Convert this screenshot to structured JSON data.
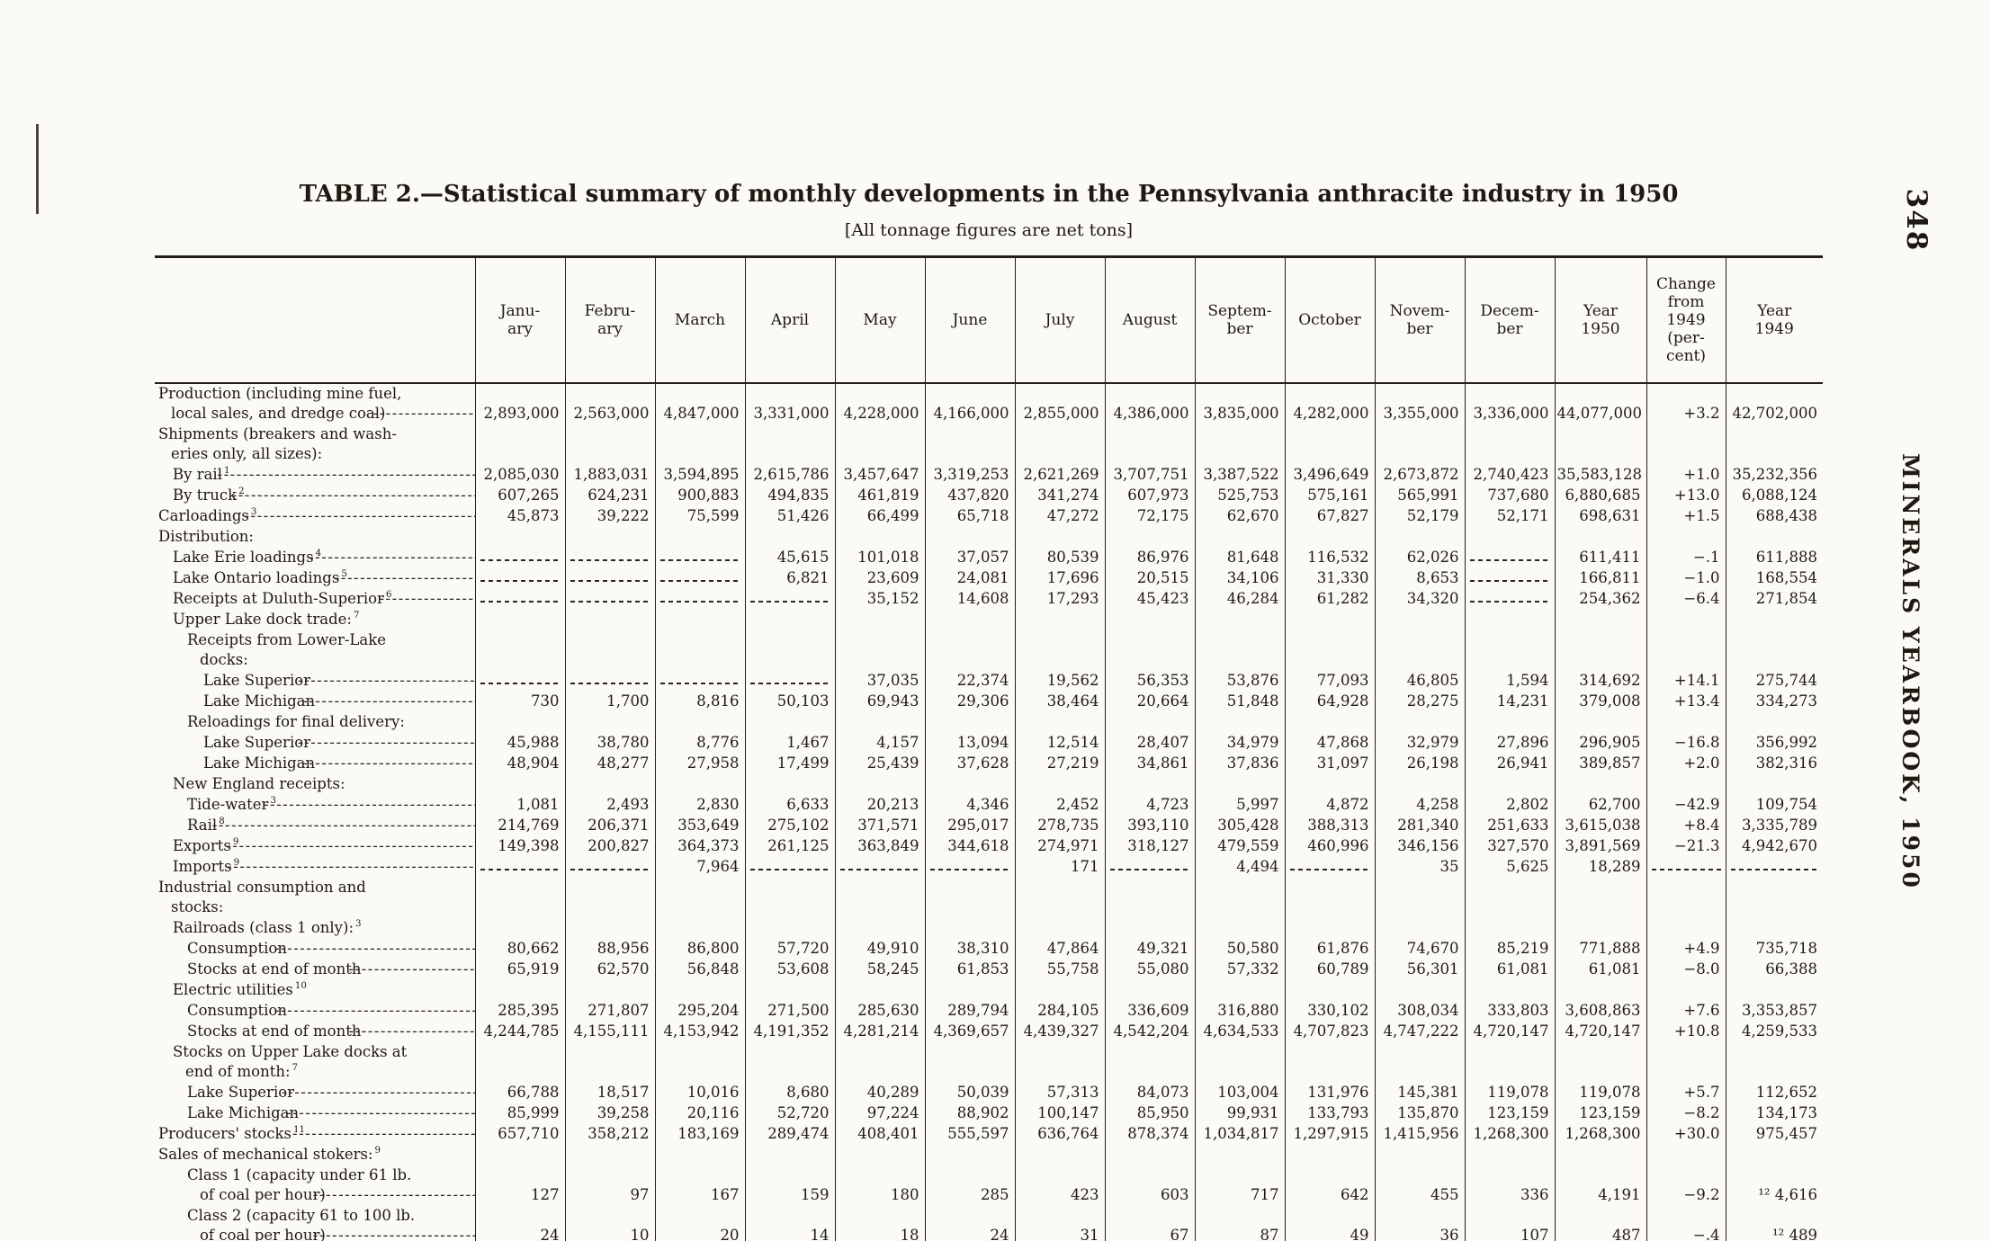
{
  "page": {
    "number": "348",
    "side_text": "MINERALS YEARBOOK, 1950"
  },
  "table": {
    "title": "TABLE 2.—Statistical summary of monthly developments in the Pennsylvania anthracite industry in 1950",
    "subtitle": "[All tonnage figures are net tons]",
    "columns": [
      "Janu-\nary",
      "Febru-\nary",
      "March",
      "April",
      "May",
      "June",
      "July",
      "August",
      "Septem-\nber",
      "October",
      "Novem-\nber",
      "Decem-\nber",
      "Year\n1950",
      "Change\nfrom\n1949\n(per-\ncent)",
      "Year\n1949"
    ],
    "rows": [
      {
        "label": "Production (including mine fuel,\nlocal sales, and dredge coal)",
        "indent": 0,
        "values": [
          "2,893,000",
          "2,563,000",
          "4,847,000",
          "3,331,000",
          "4,228,000",
          "4,166,000",
          "2,855,000",
          "4,386,000",
          "3,835,000",
          "4,282,000",
          "3,355,000",
          "3,336,000",
          "44,077,000",
          "+3.2",
          "42,702,000"
        ]
      },
      {
        "label": "Shipments (breakers and wash-\neries only, all sizes):",
        "indent": 0,
        "section": true
      },
      {
        "label": "By rail",
        "sup": "1",
        "indent": 1,
        "values": [
          "2,085,030",
          "1,883,031",
          "3,594,895",
          "2,615,786",
          "3,457,647",
          "3,319,253",
          "2,621,269",
          "3,707,751",
          "3,387,522",
          "3,496,649",
          "2,673,872",
          "2,740,423",
          "35,583,128",
          "+1.0",
          "35,232,356"
        ]
      },
      {
        "label": "By truck",
        "sup": "2",
        "indent": 1,
        "values": [
          "607,265",
          "624,231",
          "900,883",
          "494,835",
          "461,819",
          "437,820",
          "341,274",
          "607,973",
          "525,753",
          "575,161",
          "565,991",
          "737,680",
          "6,880,685",
          "+13.0",
          "6,088,124"
        ]
      },
      {
        "label": "Carloadings",
        "sup": "3",
        "indent": 0,
        "values": [
          "45,873",
          "39,222",
          "75,599",
          "51,426",
          "66,499",
          "65,718",
          "47,272",
          "72,175",
          "62,670",
          "67,827",
          "52,179",
          "52,171",
          "698,631",
          "+1.5",
          "688,438"
        ]
      },
      {
        "label": "Distribution:",
        "indent": 0,
        "section": true
      },
      {
        "label": "Lake Erie loadings",
        "sup": "4",
        "indent": 1,
        "values": [
          "",
          "",
          "",
          "45,615",
          "101,018",
          "37,057",
          "80,539",
          "86,976",
          "81,648",
          "116,532",
          "62,026",
          "",
          "611,411",
          "−.1",
          "611,888"
        ]
      },
      {
        "label": "Lake Ontario loadings",
        "sup": "5",
        "indent": 1,
        "values": [
          "",
          "",
          "",
          "6,821",
          "23,609",
          "24,081",
          "17,696",
          "20,515",
          "34,106",
          "31,330",
          "8,653",
          "",
          "166,811",
          "−1.0",
          "168,554"
        ]
      },
      {
        "label": "Receipts at Duluth-Superior",
        "sup": "6",
        "indent": 1,
        "values": [
          "",
          "",
          "",
          "",
          "35,152",
          "14,608",
          "17,293",
          "45,423",
          "46,284",
          "61,282",
          "34,320",
          "",
          "254,362",
          "−6.4",
          "271,854"
        ]
      },
      {
        "label": "Upper Lake dock trade:",
        "sup": "7",
        "indent": 1,
        "section": true
      },
      {
        "label": "Receipts from Lower-Lake\ndocks:",
        "indent": 2,
        "section": true
      },
      {
        "label": "Lake Superior",
        "indent": 3,
        "values": [
          "",
          "",
          "",
          "",
          "37,035",
          "22,374",
          "19,562",
          "56,353",
          "53,876",
          "77,093",
          "46,805",
          "1,594",
          "314,692",
          "+14.1",
          "275,744"
        ]
      },
      {
        "label": "Lake Michigan",
        "indent": 3,
        "values": [
          "730",
          "1,700",
          "8,816",
          "50,103",
          "69,943",
          "29,306",
          "38,464",
          "20,664",
          "51,848",
          "64,928",
          "28,275",
          "14,231",
          "379,008",
          "+13.4",
          "334,273"
        ]
      },
      {
        "label": "Reloadings for final delivery:",
        "indent": 2,
        "section": true
      },
      {
        "label": "Lake Superior",
        "indent": 3,
        "values": [
          "45,988",
          "38,780",
          "8,776",
          "1,467",
          "4,157",
          "13,094",
          "12,514",
          "28,407",
          "34,979",
          "47,868",
          "32,979",
          "27,896",
          "296,905",
          "−16.8",
          "356,992"
        ]
      },
      {
        "label": "Lake Michigan",
        "indent": 3,
        "values": [
          "48,904",
          "48,277",
          "27,958",
          "17,499",
          "25,439",
          "37,628",
          "27,219",
          "34,861",
          "37,836",
          "31,097",
          "26,198",
          "26,941",
          "389,857",
          "+2.0",
          "382,316"
        ]
      },
      {
        "label": "New England receipts:",
        "indent": 1,
        "section": true
      },
      {
        "label": "Tide-water",
        "sup": "3",
        "indent": 2,
        "values": [
          "1,081",
          "2,493",
          "2,830",
          "6,633",
          "20,213",
          "4,346",
          "2,452",
          "4,723",
          "5,997",
          "4,872",
          "4,258",
          "2,802",
          "62,700",
          "−42.9",
          "109,754"
        ]
      },
      {
        "label": "Rail",
        "sup": "8",
        "indent": 2,
        "values": [
          "214,769",
          "206,371",
          "353,649",
          "275,102",
          "371,571",
          "295,017",
          "278,735",
          "393,110",
          "305,428",
          "388,313",
          "281,340",
          "251,633",
          "3,615,038",
          "+8.4",
          "3,335,789"
        ]
      },
      {
        "label": "Exports",
        "sup": "9",
        "indent": 1,
        "values": [
          "149,398",
          "200,827",
          "364,373",
          "261,125",
          "363,849",
          "344,618",
          "274,971",
          "318,127",
          "479,559",
          "460,996",
          "346,156",
          "327,570",
          "3,891,569",
          "−21.3",
          "4,942,670"
        ]
      },
      {
        "label": "Imports",
        "sup": "9",
        "indent": 1,
        "values": [
          "",
          "",
          "7,964",
          "",
          "",
          "",
          "171",
          "",
          "4,494",
          "",
          "35",
          "5,625",
          "18,289",
          "",
          ""
        ]
      },
      {
        "label": "Industrial consumption and\nstocks:",
        "indent": 0,
        "section": true
      },
      {
        "label": "Railroads (class 1 only):",
        "sup": "3",
        "indent": 1,
        "section": true
      },
      {
        "label": "Consumption",
        "indent": 2,
        "values": [
          "80,662",
          "88,956",
          "86,800",
          "57,720",
          "49,910",
          "38,310",
          "47,864",
          "49,321",
          "50,580",
          "61,876",
          "74,670",
          "85,219",
          "771,888",
          "+4.9",
          "735,718"
        ]
      },
      {
        "label": "Stocks at end of month",
        "indent": 2,
        "values": [
          "65,919",
          "62,570",
          "56,848",
          "53,608",
          "58,245",
          "61,853",
          "55,758",
          "55,080",
          "57,332",
          "60,789",
          "56,301",
          "61,081",
          "61,081",
          "−8.0",
          "66,388"
        ]
      },
      {
        "label": "Electric utilities",
        "sup": "10",
        "indent": 1,
        "section": true
      },
      {
        "label": "Consumption",
        "indent": 2,
        "values": [
          "285,395",
          "271,807",
          "295,204",
          "271,500",
          "285,630",
          "289,794",
          "284,105",
          "336,609",
          "316,880",
          "330,102",
          "308,034",
          "333,803",
          "3,608,863",
          "+7.6",
          "3,353,857"
        ]
      },
      {
        "label": "Stocks at end of month",
        "indent": 2,
        "values": [
          "4,244,785",
          "4,155,111",
          "4,153,942",
          "4,191,352",
          "4,281,214",
          "4,369,657",
          "4,439,327",
          "4,542,204",
          "4,634,533",
          "4,707,823",
          "4,747,222",
          "4,720,147",
          "4,720,147",
          "+10.8",
          "4,259,533"
        ]
      },
      {
        "label": "Stocks on Upper Lake docks at\nend of month:",
        "sup": "7",
        "indent": 1,
        "section": true
      },
      {
        "label": "Lake Superior",
        "indent": 2,
        "values": [
          "66,788",
          "18,517",
          "10,016",
          "8,680",
          "40,289",
          "50,039",
          "57,313",
          "84,073",
          "103,004",
          "131,976",
          "145,381",
          "119,078",
          "119,078",
          "+5.7",
          "112,652"
        ]
      },
      {
        "label": "Lake Michigan",
        "indent": 2,
        "values": [
          "85,999",
          "39,258",
          "20,116",
          "52,720",
          "97,224",
          "88,902",
          "100,147",
          "85,950",
          "99,931",
          "133,793",
          "135,870",
          "123,159",
          "123,159",
          "−8.2",
          "134,173"
        ]
      },
      {
        "label": "Producers' stocks",
        "sup": "11",
        "indent": 0,
        "values": [
          "657,710",
          "358,212",
          "183,169",
          "289,474",
          "408,401",
          "555,597",
          "636,764",
          "878,374",
          "1,034,817",
          "1,297,915",
          "1,415,956",
          "1,268,300",
          "1,268,300",
          "+30.0",
          "975,457"
        ]
      },
      {
        "label": "Sales of mechanical stokers:",
        "sup": "9",
        "indent": 0,
        "section": true
      },
      {
        "label": "Class 1 (capacity under 61 lb.\nof coal per hour)",
        "indent": 2,
        "values": [
          "127",
          "97",
          "167",
          "159",
          "180",
          "285",
          "423",
          "603",
          "717",
          "642",
          "455",
          "336",
          "4,191",
          "−9.2",
          "¹² 4,616"
        ]
      },
      {
        "label": "Class 2 (capacity 61 to 100 lb.\nof coal per hour)",
        "indent": 2,
        "values": [
          "24",
          "10",
          "20",
          "14",
          "18",
          "24",
          "31",
          "67",
          "87",
          "49",
          "36",
          "107",
          "487",
          "−.4",
          "¹² 489"
        ]
      }
    ]
  }
}
